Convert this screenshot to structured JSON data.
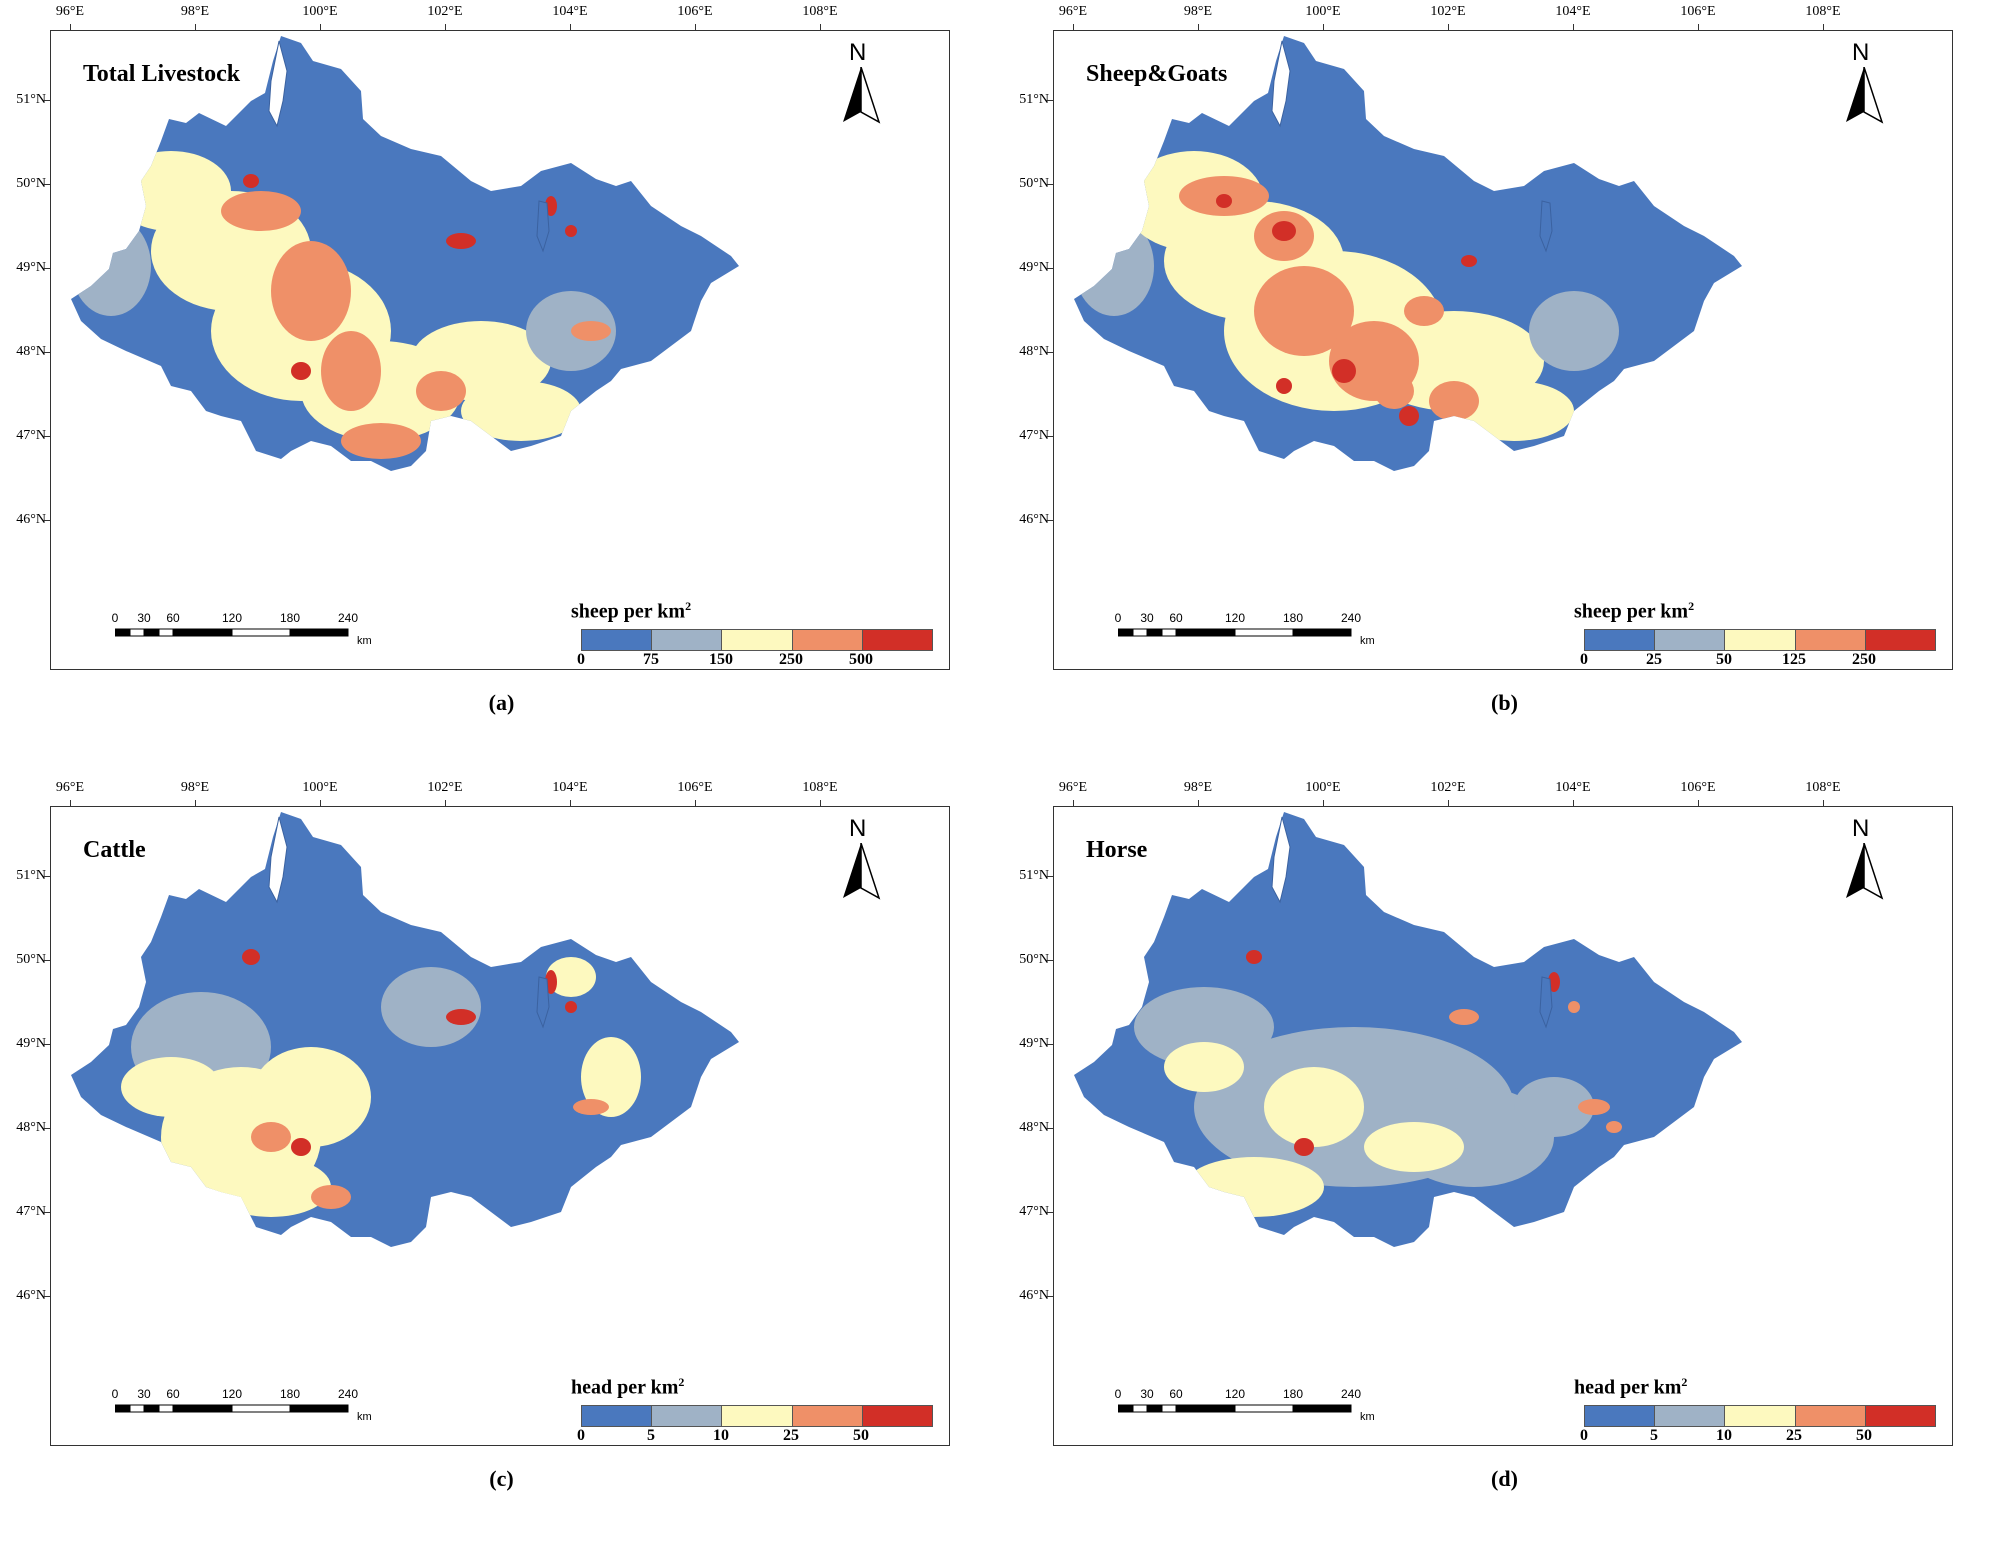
{
  "axes": {
    "lon_labels": [
      "96°E",
      "98°E",
      "100°E",
      "102°E",
      "104°E",
      "106°E",
      "108°E"
    ],
    "lat_labels": [
      "51°N",
      "50°N",
      "49°N",
      "48°N",
      "47°N",
      "46°N"
    ]
  },
  "north_arrow_label": "N",
  "scale_bar": {
    "ticks": [
      "0",
      "30",
      "60",
      "120",
      "180",
      "240"
    ],
    "unit": "km"
  },
  "colors": {
    "blue": "#4a78be",
    "grey": "#9fb2c6",
    "yellow": "#fdf9bf",
    "orange": "#ef9068",
    "red": "#d22f27"
  },
  "panels": [
    {
      "title": "Total Livestock",
      "caption": "(a)",
      "legend": {
        "title": "sheep per km",
        "superscript": "2",
        "breaks": [
          "0",
          "75",
          "150",
          "250",
          "500"
        ]
      }
    },
    {
      "title": "Sheep&Goats",
      "caption": "(b)",
      "legend": {
        "title": "sheep per km",
        "superscript": "2",
        "breaks": [
          "0",
          "25",
          "50",
          "125",
          "250"
        ]
      }
    },
    {
      "title": "Cattle",
      "caption": "(c)",
      "legend": {
        "title": "head per km",
        "superscript": "2",
        "breaks": [
          "0",
          "5",
          "10",
          "25",
          "50"
        ]
      }
    },
    {
      "title": "Horse",
      "caption": "(d)",
      "legend": {
        "title": "head per km",
        "superscript": "2",
        "breaks": [
          "0",
          "5",
          "10",
          "25",
          "50"
        ]
      }
    }
  ]
}
